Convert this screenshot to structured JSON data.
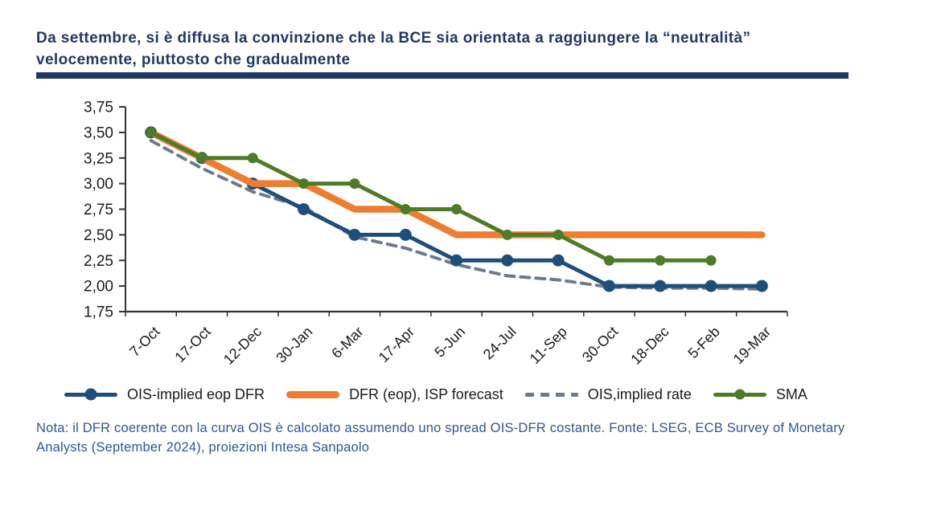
{
  "header": {
    "title_line1": "Da settembre, si è diffusa la convinzione che la BCE sia orientata a raggiungere la “neutralità”",
    "title_line2": "velocemente, piuttosto che gradualmente"
  },
  "footnote": {
    "line1": "Nota: il DFR coerente con la curva OIS è calcolato assumendo uno spread OIS-DFR costante. Fonte: LSEG, ECB Survey of",
    "line2": "Monetary Analysts (September 2024), proiezioni Intesa Sanpaolo"
  },
  "colors": {
    "title": "#1F3864",
    "rule": "#1F3864",
    "note": "#2F5597",
    "axis": "#333333",
    "tick_label": "#1a1a1a"
  },
  "chart_data": {
    "type": "line",
    "title": "",
    "xlabel": "",
    "ylabel": "",
    "grid": false,
    "legend_position": "bottom",
    "ylim": [
      1.75,
      3.75
    ],
    "ytick_step": 0.25,
    "ytick_labels": [
      "3,75",
      "3,50",
      "3,25",
      "3,00",
      "2,75",
      "2,50",
      "2,25",
      "2,00",
      "1,75"
    ],
    "categories": [
      "7-Oct",
      "17-Oct",
      "12-Dec",
      "30-Jan",
      "6-Mar",
      "17-Apr",
      "5-Jun",
      "24-Jul",
      "11-Sep",
      "30-Oct",
      "18-Dec",
      "5-Feb",
      "19-Mar"
    ],
    "series": [
      {
        "name": "OIS-implied eop DFR",
        "color": "#1F4E79",
        "style": "solid",
        "marker": "circle",
        "marker_radius": 7.5,
        "stroke_width": 5,
        "values": [
          3.5,
          3.25,
          3.0,
          2.75,
          2.5,
          2.5,
          2.25,
          2.25,
          2.25,
          2.0,
          2.0,
          2.0,
          2.0
        ]
      },
      {
        "name": "DFR (eop), ISP forecast",
        "color": "#ED7D31",
        "style": "solid",
        "marker": "none",
        "marker_radius": 0,
        "stroke_width": 8.5,
        "values": [
          3.5,
          3.25,
          3.0,
          3.0,
          2.75,
          2.75,
          2.5,
          2.5,
          2.5,
          2.5,
          2.5,
          2.5,
          2.5
        ]
      },
      {
        "name": "OIS,implied rate",
        "color": "#6D7A8C",
        "style": "dashed",
        "marker": "none",
        "marker_radius": 0,
        "stroke_width": 4,
        "values": [
          3.42,
          3.15,
          2.92,
          2.77,
          2.48,
          2.37,
          2.21,
          2.1,
          2.06,
          1.99,
          1.98,
          1.98,
          1.97
        ]
      },
      {
        "name": "SMA",
        "color": "#4E7B28",
        "style": "solid",
        "marker": "circle",
        "marker_radius": 6.5,
        "stroke_width": 5,
        "values": [
          3.5,
          3.25,
          3.25,
          3.0,
          3.0,
          2.75,
          2.75,
          2.5,
          2.5,
          2.25,
          2.25,
          2.25,
          null
        ]
      }
    ],
    "draw_order": [
      2,
      0,
      1,
      3
    ]
  }
}
